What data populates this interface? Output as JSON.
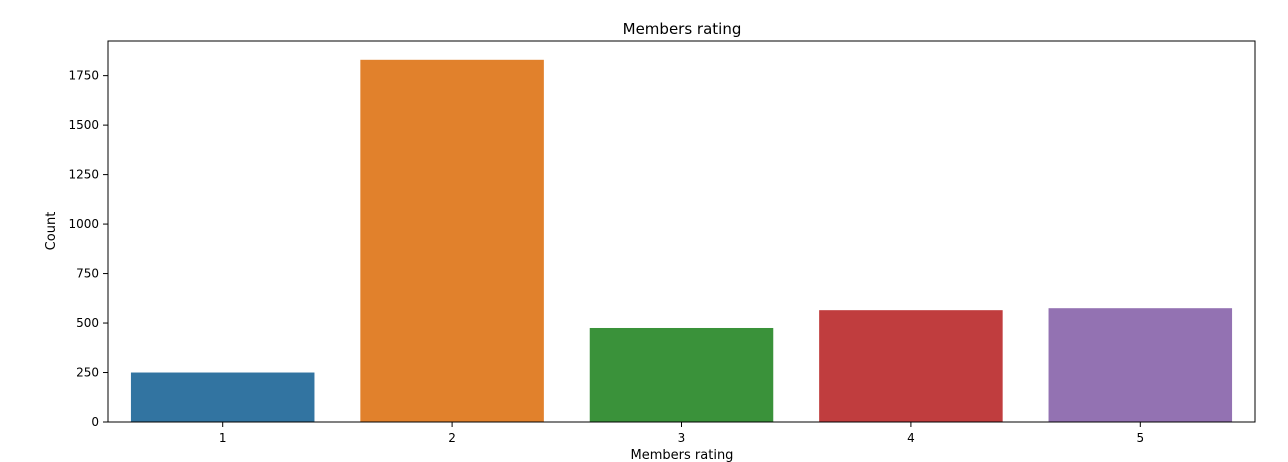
{
  "chart_data": {
    "type": "bar",
    "title": "Members rating",
    "xlabel": "Members rating",
    "ylabel": "Count",
    "categories": [
      "1",
      "2",
      "3",
      "4",
      "5"
    ],
    "values": [
      250,
      1830,
      475,
      565,
      575
    ],
    "colors": [
      "#3274a1",
      "#e1812c",
      "#3a923a",
      "#c03d3e",
      "#9372b2"
    ],
    "ylim": [
      0,
      1925
    ],
    "yticks": [
      0,
      250,
      500,
      750,
      1000,
      1250,
      1500,
      1750
    ],
    "grid": false,
    "legend": "none"
  }
}
